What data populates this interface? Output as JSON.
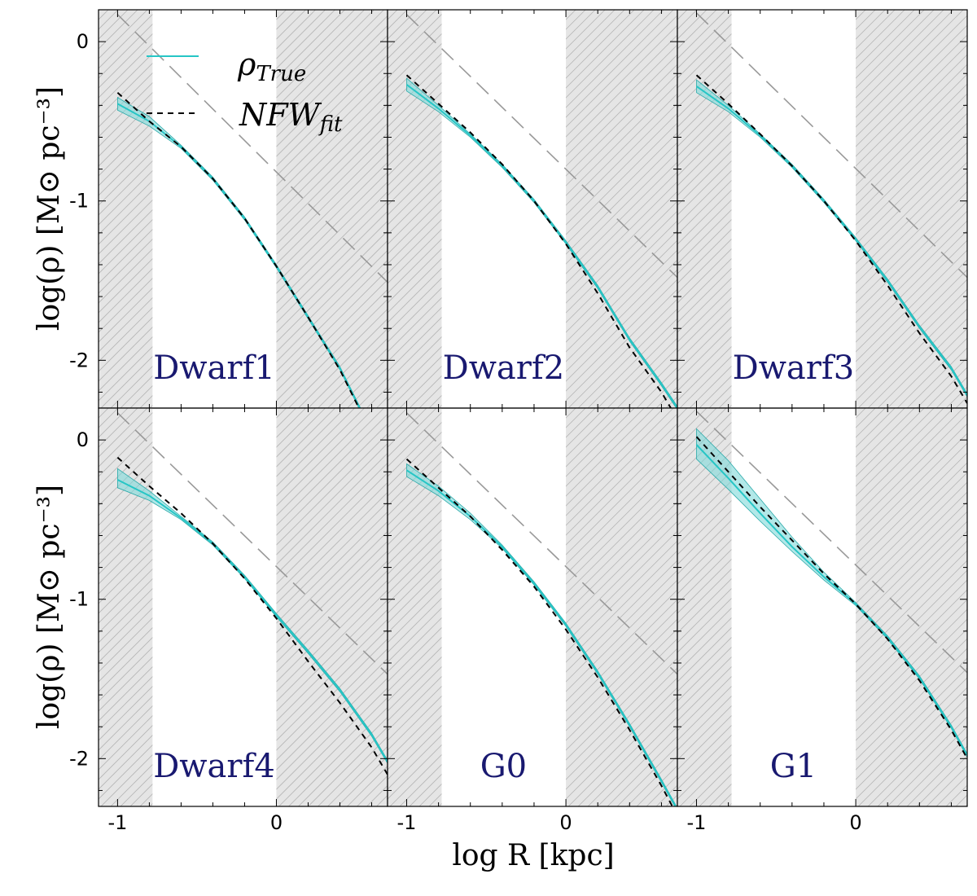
{
  "chart_data": {
    "type": "line",
    "x_label": "log R [kpc]",
    "y_label": "log(ρ) [M⊙ pc⁻³]",
    "xlim": [
      -1.12,
      0.7
    ],
    "ylim": [
      -2.3,
      0.2
    ],
    "x_ticks": [
      "-1",
      "0"
    ],
    "y_ticks": [
      "0",
      "-1",
      "-2"
    ],
    "shaded_regions": [
      [
        -1.12,
        -0.78
      ],
      [
        0.0,
        0.7
      ]
    ],
    "legend": {
      "position": "top-left",
      "entries": [
        {
          "main": "ρ",
          "sub": "True",
          "style": "solid",
          "color": "#26c6c6"
        },
        {
          "main": "NFW",
          "sub": "fit",
          "style": "dashed",
          "color": "#000000"
        }
      ]
    },
    "colors": {
      "true_line": "#26c6c6",
      "true_band": "#7fd9d9",
      "nfw_line": "#000000",
      "reference_line": "#999999",
      "shade": "#e5e5e5",
      "hatch": "#b5b5b5",
      "panel_label": "#191970"
    },
    "panels": [
      {
        "label": "Dwarf1",
        "x": [
          -1.0,
          -0.8,
          -0.6,
          -0.4,
          -0.2,
          0.0,
          0.2,
          0.4,
          0.6,
          0.7
        ],
        "true": [
          -0.39,
          -0.5,
          -0.66,
          -0.86,
          -1.11,
          -1.41,
          -1.73,
          -2.05,
          -2.45,
          -2.62
        ],
        "true_lower": [
          -0.43,
          -0.53,
          -0.67,
          -0.87,
          -1.12,
          -1.42,
          -1.74,
          -2.06,
          -2.46,
          -2.63
        ],
        "true_upper": [
          -0.35,
          -0.47,
          -0.65,
          -0.85,
          -1.1,
          -1.4,
          -1.72,
          -2.04,
          -2.44,
          -2.61
        ],
        "nfw": [
          -0.32,
          -0.5,
          -0.66,
          -0.86,
          -1.11,
          -1.41,
          -1.73,
          -2.06,
          -2.46,
          -2.63
        ],
        "reference": {
          "x": [
            -1.0,
            0.7
          ],
          "y": [
            0.17,
            -1.51
          ]
        }
      },
      {
        "label": "Dwarf2",
        "x": [
          -1.0,
          -0.8,
          -0.6,
          -0.4,
          -0.2,
          0.0,
          0.2,
          0.4,
          0.6,
          0.7
        ],
        "true": [
          -0.27,
          -0.42,
          -0.59,
          -0.78,
          -1.0,
          -1.26,
          -1.54,
          -1.87,
          -2.15,
          -2.3
        ],
        "true_lower": [
          -0.31,
          -0.44,
          -0.6,
          -0.79,
          -1.01,
          -1.27,
          -1.55,
          -1.88,
          -2.16,
          -2.31
        ],
        "true_upper": [
          -0.23,
          -0.4,
          -0.58,
          -0.77,
          -0.99,
          -1.25,
          -1.53,
          -1.86,
          -2.14,
          -2.29
        ],
        "nfw": [
          -0.21,
          -0.39,
          -0.57,
          -0.77,
          -1.0,
          -1.27,
          -1.58,
          -1.92,
          -2.2,
          -2.37
        ],
        "reference": {
          "x": [
            -1.0,
            0.7
          ],
          "y": [
            0.17,
            -1.48
          ]
        }
      },
      {
        "label": "Dwarf3",
        "x": [
          -1.0,
          -0.8,
          -0.6,
          -0.4,
          -0.2,
          0.0,
          0.2,
          0.4,
          0.6,
          0.7
        ],
        "true": [
          -0.28,
          -0.42,
          -0.59,
          -0.78,
          -1.0,
          -1.24,
          -1.5,
          -1.79,
          -2.05,
          -2.22
        ],
        "true_lower": [
          -0.32,
          -0.44,
          -0.6,
          -0.79,
          -1.01,
          -1.25,
          -1.51,
          -1.8,
          -2.06,
          -2.23
        ],
        "true_upper": [
          -0.24,
          -0.4,
          -0.58,
          -0.77,
          -0.99,
          -1.23,
          -1.49,
          -1.78,
          -2.04,
          -2.21
        ],
        "nfw": [
          -0.21,
          -0.39,
          -0.58,
          -0.78,
          -1.0,
          -1.25,
          -1.53,
          -1.83,
          -2.1,
          -2.27
        ],
        "reference": {
          "x": [
            -1.0,
            0.7
          ],
          "y": [
            0.18,
            -1.48
          ]
        }
      },
      {
        "label": "Dwarf4",
        "x": [
          -1.0,
          -0.8,
          -0.6,
          -0.4,
          -0.2,
          0.0,
          0.2,
          0.4,
          0.6,
          0.7
        ],
        "true": [
          -0.25,
          -0.35,
          -0.49,
          -0.65,
          -0.86,
          -1.1,
          -1.33,
          -1.57,
          -1.85,
          -2.02
        ],
        "true_lower": [
          -0.3,
          -0.38,
          -0.5,
          -0.66,
          -0.87,
          -1.11,
          -1.34,
          -1.58,
          -1.86,
          -2.03
        ],
        "true_upper": [
          -0.18,
          -0.32,
          -0.48,
          -0.64,
          -0.85,
          -1.09,
          -1.32,
          -1.56,
          -1.84,
          -2.01
        ],
        "nfw": [
          -0.11,
          -0.29,
          -0.46,
          -0.65,
          -0.87,
          -1.12,
          -1.39,
          -1.65,
          -1.93,
          -2.1
        ],
        "reference": {
          "x": [
            -1.0,
            0.7
          ],
          "y": [
            0.17,
            -1.47
          ]
        }
      },
      {
        "label": "G0",
        "x": [
          -1.0,
          -0.8,
          -0.6,
          -0.4,
          -0.2,
          0.0,
          0.2,
          0.4,
          0.6,
          0.7
        ],
        "true": [
          -0.19,
          -0.32,
          -0.48,
          -0.67,
          -0.9,
          -1.16,
          -1.46,
          -1.79,
          -2.14,
          -2.32
        ],
        "true_lower": [
          -0.23,
          -0.35,
          -0.5,
          -0.68,
          -0.91,
          -1.17,
          -1.47,
          -1.8,
          -2.15,
          -2.33
        ],
        "true_upper": [
          -0.15,
          -0.29,
          -0.46,
          -0.66,
          -0.89,
          -1.15,
          -1.45,
          -1.78,
          -2.13,
          -2.31
        ],
        "nfw": [
          -0.12,
          -0.3,
          -0.48,
          -0.69,
          -0.92,
          -1.19,
          -1.49,
          -1.82,
          -2.17,
          -2.36
        ],
        "reference": {
          "x": [
            -1.0,
            0.7
          ],
          "y": [
            0.17,
            -1.47
          ]
        }
      },
      {
        "label": "G1",
        "x": [
          -1.0,
          -0.8,
          -0.6,
          -0.4,
          -0.2,
          0.0,
          0.2,
          0.4,
          0.6,
          0.7
        ],
        "true": [
          -0.03,
          -0.24,
          -0.46,
          -0.67,
          -0.86,
          -1.03,
          -1.24,
          -1.49,
          -1.8,
          -1.98
        ],
        "true_lower": [
          -0.12,
          -0.31,
          -0.51,
          -0.7,
          -0.88,
          -1.04,
          -1.25,
          -1.5,
          -1.81,
          -1.99
        ],
        "true_upper": [
          0.07,
          -0.13,
          -0.37,
          -0.61,
          -0.83,
          -1.02,
          -1.23,
          -1.48,
          -1.79,
          -1.97
        ],
        "nfw": [
          0.02,
          -0.2,
          -0.42,
          -0.63,
          -0.84,
          -1.03,
          -1.25,
          -1.51,
          -1.82,
          -2.0
        ],
        "reference": {
          "x": [
            -1.0,
            0.7
          ],
          "y": [
            0.18,
            -1.46
          ]
        }
      }
    ]
  }
}
